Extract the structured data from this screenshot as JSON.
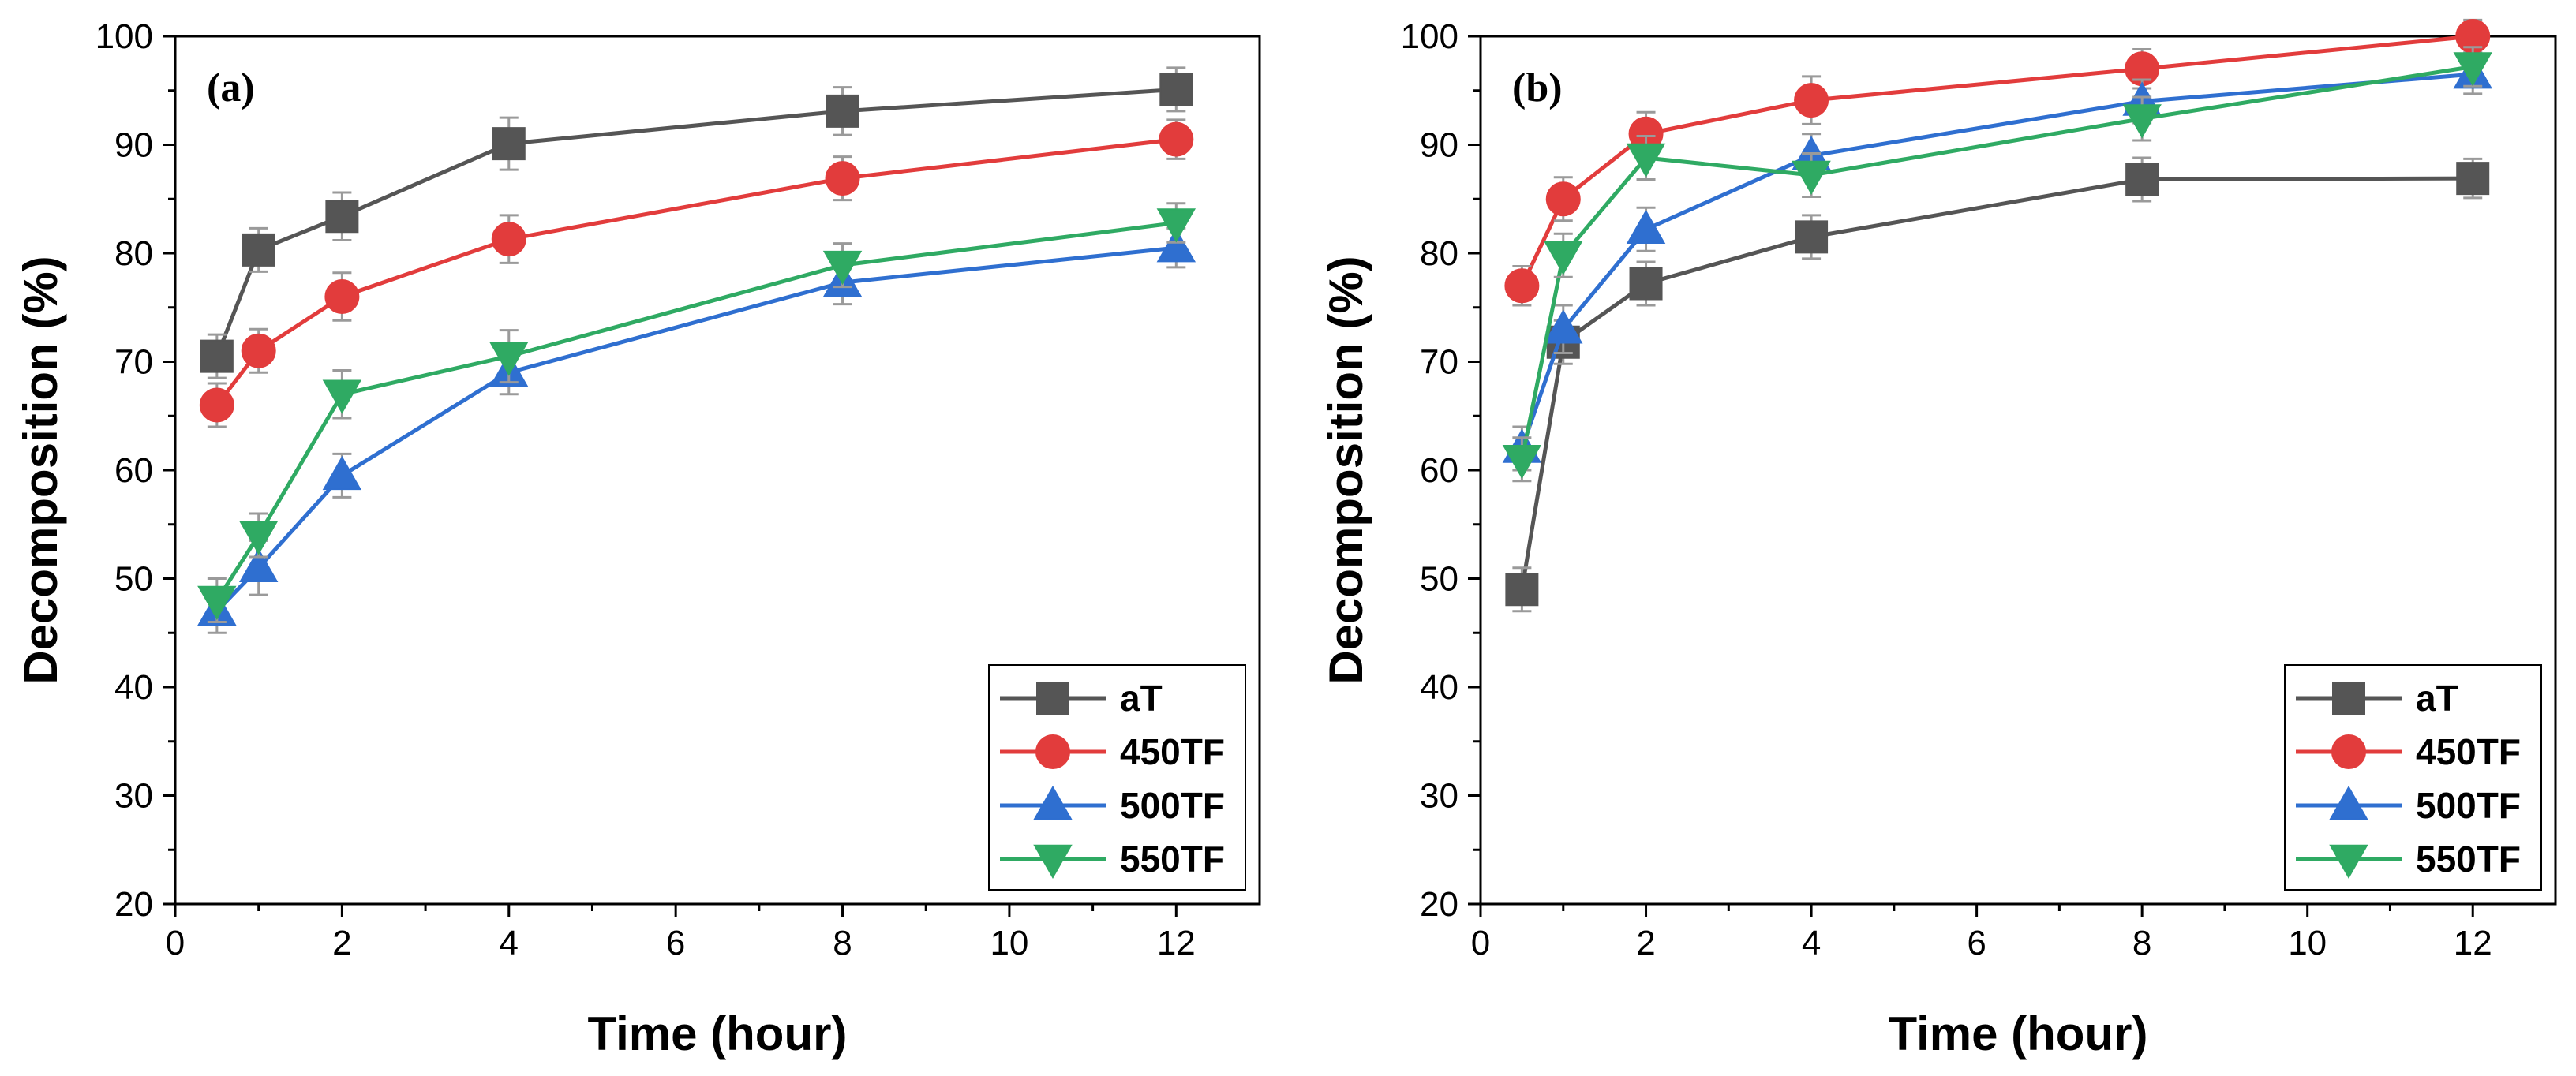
{
  "chart_data": [
    {
      "type": "line",
      "panel_label": "(a)",
      "xlabel": "Time (hour)",
      "ylabel": "Decomposition (%)",
      "xlim": [
        0,
        13
      ],
      "ylim": [
        20,
        100
      ],
      "xticks": [
        0,
        2,
        4,
        6,
        8,
        10,
        12
      ],
      "yticks": [
        20,
        30,
        40,
        50,
        60,
        70,
        80,
        90,
        100
      ],
      "x": [
        0.5,
        1,
        2,
        4,
        8,
        12
      ],
      "legend_position": "bottom-right",
      "grid": false,
      "series": [
        {
          "name": "aT",
          "color": "#555555",
          "marker": "square",
          "values": [
            70.5,
            80.3,
            83.4,
            90.1,
            93.1,
            95.1
          ],
          "errors": [
            2.0,
            2.0,
            2.2,
            2.4,
            2.2,
            2.0
          ]
        },
        {
          "name": "450TF",
          "color": "#e23c3c",
          "marker": "circle",
          "values": [
            66.0,
            71.0,
            76.0,
            81.3,
            86.9,
            90.5
          ],
          "errors": [
            2.0,
            2.0,
            2.2,
            2.2,
            2.0,
            1.8
          ]
        },
        {
          "name": "500TF",
          "color": "#2f6fd0",
          "marker": "triangle-up",
          "values": [
            47.0,
            51.0,
            59.5,
            69.0,
            77.3,
            80.5
          ],
          "errors": [
            2.0,
            2.5,
            2.0,
            2.0,
            2.0,
            1.8
          ]
        },
        {
          "name": "550TF",
          "color": "#2faa63",
          "marker": "triangle-down",
          "values": [
            48.0,
            54.0,
            67.0,
            70.5,
            78.9,
            82.8
          ],
          "errors": [
            2.0,
            2.0,
            2.2,
            2.4,
            2.0,
            1.8
          ]
        }
      ]
    },
    {
      "type": "line",
      "panel_label": "(b)",
      "xlabel": "Time (hour)",
      "ylabel": "Decomposition (%)",
      "xlim": [
        0,
        13
      ],
      "ylim": [
        20,
        100
      ],
      "xticks": [
        0,
        2,
        4,
        6,
        8,
        10,
        12
      ],
      "yticks": [
        20,
        30,
        40,
        50,
        60,
        70,
        80,
        90,
        100
      ],
      "x": [
        0.5,
        1,
        2,
        4,
        8,
        12
      ],
      "legend_position": "bottom-right",
      "grid": false,
      "series": [
        {
          "name": "aT",
          "color": "#555555",
          "marker": "square",
          "values": [
            49.0,
            71.8,
            77.2,
            81.5,
            86.8,
            86.9
          ],
          "errors": [
            2.0,
            2.0,
            2.0,
            2.0,
            2.0,
            1.8
          ]
        },
        {
          "name": "450TF",
          "color": "#e23c3c",
          "marker": "circle",
          "values": [
            77.0,
            85.0,
            91.0,
            94.1,
            97.0,
            100.0
          ],
          "errors": [
            1.8,
            2.0,
            2.0,
            2.2,
            1.8,
            1.5
          ]
        },
        {
          "name": "500TF",
          "color": "#2f6fd0",
          "marker": "triangle-up",
          "values": [
            62.0,
            73.0,
            82.2,
            89.0,
            94.0,
            96.5
          ],
          "errors": [
            2.0,
            2.2,
            2.0,
            2.0,
            2.0,
            1.8
          ]
        },
        {
          "name": "550TF",
          "color": "#2faa63",
          "marker": "triangle-down",
          "values": [
            61.0,
            79.8,
            88.8,
            87.2,
            92.4,
            97.2
          ],
          "errors": [
            2.0,
            2.0,
            2.0,
            2.0,
            2.0,
            1.8
          ]
        }
      ]
    }
  ]
}
